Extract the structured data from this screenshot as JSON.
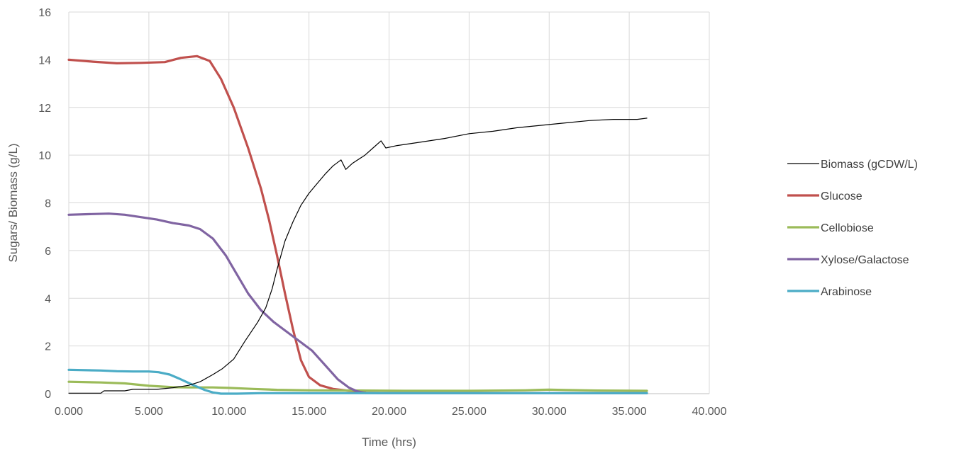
{
  "chart_data": {
    "type": "line",
    "title": "",
    "xlabel": "Time (hrs)",
    "ylabel": "Sugars/ Biomass (g/L)",
    "xlim": [
      0,
      40
    ],
    "ylim": [
      0,
      16
    ],
    "xticks": [
      0,
      5,
      10,
      15,
      20,
      25,
      30,
      35,
      40
    ],
    "yticks": [
      0,
      2,
      4,
      6,
      8,
      10,
      12,
      14,
      16
    ],
    "xtick_labels": [
      "0.000",
      "5.000",
      "10.000",
      "15.000",
      "20.000",
      "25.000",
      "30.000",
      "35.000",
      "40.000"
    ],
    "ytick_labels": [
      "0",
      "2",
      "4",
      "6",
      "8",
      "10",
      "12",
      "14",
      "16"
    ],
    "grid": true,
    "legend_position": "right",
    "series": [
      {
        "name": "Biomass (gCDW/L)",
        "color": "#000000",
        "line_width": "thin",
        "points": [
          [
            0,
            0.02
          ],
          [
            2.0,
            0.02
          ],
          [
            2.2,
            0.12
          ],
          [
            3.5,
            0.12
          ],
          [
            4.0,
            0.18
          ],
          [
            5.5,
            0.18
          ],
          [
            6.5,
            0.25
          ],
          [
            7.5,
            0.35
          ],
          [
            8.2,
            0.5
          ],
          [
            9.0,
            0.8
          ],
          [
            9.6,
            1.05
          ],
          [
            10.3,
            1.45
          ],
          [
            11.0,
            2.2
          ],
          [
            11.8,
            3.0
          ],
          [
            12.3,
            3.6
          ],
          [
            12.7,
            4.4
          ],
          [
            13.0,
            5.2
          ],
          [
            13.5,
            6.4
          ],
          [
            14.0,
            7.2
          ],
          [
            14.5,
            7.9
          ],
          [
            15.0,
            8.4
          ],
          [
            15.5,
            8.8
          ],
          [
            16.0,
            9.2
          ],
          [
            16.5,
            9.55
          ],
          [
            16.8,
            9.7
          ],
          [
            17.0,
            9.8
          ],
          [
            17.3,
            9.4
          ],
          [
            17.7,
            9.65
          ],
          [
            18.5,
            10.0
          ],
          [
            19.0,
            10.3
          ],
          [
            19.5,
            10.6
          ],
          [
            19.8,
            10.3
          ],
          [
            20.5,
            10.4
          ],
          [
            22,
            10.55
          ],
          [
            23.5,
            10.7
          ],
          [
            25,
            10.9
          ],
          [
            26.5,
            11.0
          ],
          [
            28,
            11.15
          ],
          [
            29.5,
            11.25
          ],
          [
            31,
            11.35
          ],
          [
            32.5,
            11.45
          ],
          [
            34,
            11.5
          ],
          [
            35.5,
            11.5
          ],
          [
            36.1,
            11.55
          ]
        ]
      },
      {
        "name": "Glucose",
        "color": "#C0504D",
        "line_width": "thick",
        "points": [
          [
            0,
            14.0
          ],
          [
            1.5,
            13.92
          ],
          [
            3.0,
            13.85
          ],
          [
            4.5,
            13.87
          ],
          [
            6.0,
            13.9
          ],
          [
            7.0,
            14.08
          ],
          [
            8.0,
            14.15
          ],
          [
            8.8,
            13.95
          ],
          [
            9.5,
            13.2
          ],
          [
            10.3,
            12.0
          ],
          [
            11.2,
            10.3
          ],
          [
            12.0,
            8.6
          ],
          [
            12.5,
            7.3
          ],
          [
            13.0,
            5.8
          ],
          [
            13.5,
            4.2
          ],
          [
            14.0,
            2.7
          ],
          [
            14.5,
            1.4
          ],
          [
            15.0,
            0.7
          ],
          [
            15.7,
            0.35
          ],
          [
            16.5,
            0.2
          ],
          [
            17.5,
            0.12
          ],
          [
            18.5,
            0.08
          ]
        ]
      },
      {
        "name": "Cellobiose",
        "color": "#9BBB59",
        "line_width": "thick",
        "points": [
          [
            0,
            0.5
          ],
          [
            2.0,
            0.47
          ],
          [
            3.5,
            0.43
          ],
          [
            5.0,
            0.33
          ],
          [
            6.5,
            0.27
          ],
          [
            7.5,
            0.26
          ],
          [
            9.0,
            0.26
          ],
          [
            10.0,
            0.24
          ],
          [
            11.5,
            0.2
          ],
          [
            13.0,
            0.16
          ],
          [
            15.0,
            0.14
          ],
          [
            18.0,
            0.13
          ],
          [
            21.0,
            0.12
          ],
          [
            25.0,
            0.12
          ],
          [
            28.5,
            0.14
          ],
          [
            30.0,
            0.17
          ],
          [
            31.0,
            0.15
          ],
          [
            33.0,
            0.13
          ],
          [
            36.1,
            0.12
          ]
        ]
      },
      {
        "name": "Xylose/Galactose",
        "color": "#8064A2",
        "line_width": "thick",
        "points": [
          [
            0,
            7.5
          ],
          [
            1.5,
            7.53
          ],
          [
            2.5,
            7.55
          ],
          [
            3.5,
            7.5
          ],
          [
            4.5,
            7.4
          ],
          [
            5.5,
            7.3
          ],
          [
            6.5,
            7.15
          ],
          [
            7.5,
            7.05
          ],
          [
            8.2,
            6.9
          ],
          [
            9.0,
            6.5
          ],
          [
            9.8,
            5.8
          ],
          [
            10.5,
            5.0
          ],
          [
            11.2,
            4.2
          ],
          [
            12.0,
            3.5
          ],
          [
            12.8,
            3.0
          ],
          [
            13.6,
            2.6
          ],
          [
            14.4,
            2.2
          ],
          [
            15.2,
            1.8
          ],
          [
            16.0,
            1.2
          ],
          [
            16.8,
            0.6
          ],
          [
            17.5,
            0.25
          ],
          [
            18.0,
            0.1
          ],
          [
            18.5,
            0.03
          ],
          [
            19.5,
            0.02
          ],
          [
            36.1,
            0.02
          ]
        ]
      },
      {
        "name": "Arabinose",
        "color": "#4BACC6",
        "line_width": "thick",
        "points": [
          [
            0,
            1.0
          ],
          [
            2.0,
            0.97
          ],
          [
            3.0,
            0.94
          ],
          [
            4.0,
            0.93
          ],
          [
            5.0,
            0.93
          ],
          [
            5.6,
            0.9
          ],
          [
            6.3,
            0.8
          ],
          [
            7.0,
            0.6
          ],
          [
            7.8,
            0.35
          ],
          [
            8.5,
            0.15
          ],
          [
            9.0,
            0.05
          ],
          [
            9.5,
            0.0
          ],
          [
            10.5,
            0.0
          ],
          [
            12,
            0.02
          ],
          [
            14,
            0.02
          ],
          [
            18,
            0.02
          ],
          [
            36.1,
            0.02
          ]
        ]
      }
    ]
  }
}
